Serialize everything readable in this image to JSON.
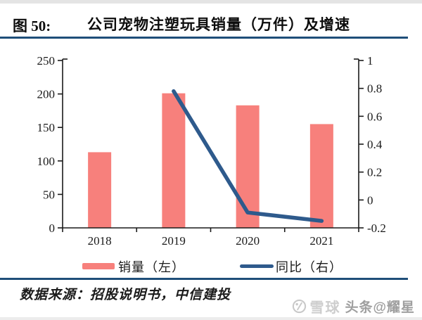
{
  "figure": {
    "label": "图 50:",
    "title": "公司宠物注塑玩具销量（万件）及增速"
  },
  "legend": [
    {
      "label": "销量（左）",
      "type": "bar"
    },
    {
      "label": "同比（右）",
      "type": "line"
    }
  ],
  "footer": {
    "source": "数据来源：招股说明书，中信建投"
  },
  "watermark": {
    "logo": "雪球",
    "badge": "头条@耀星"
  },
  "colors": {
    "bar": "#F7807C",
    "line": "#2E5A8C",
    "rule": "#1F4E79",
    "axis": "#1A1A1A"
  },
  "chart_data": {
    "type": "bar",
    "subtype": "combo-bar-line",
    "title": "公司宠物注塑玩具销量（万件）及增速",
    "categories": [
      "2018",
      "2019",
      "2020",
      "2021"
    ],
    "series": [
      {
        "name": "销量（左）",
        "type": "bar",
        "axis": "left",
        "values": [
          113,
          201,
          183,
          155
        ]
      },
      {
        "name": "同比（右）",
        "type": "line",
        "axis": "right",
        "values": [
          null,
          0.78,
          -0.09,
          -0.15
        ]
      }
    ],
    "left_axis": {
      "range": [
        0,
        250
      ],
      "ticks": [
        0,
        50,
        100,
        150,
        200,
        250
      ]
    },
    "right_axis": {
      "range": [
        -0.2,
        1
      ],
      "ticks": [
        -0.2,
        0,
        0.2,
        0.4,
        0.6,
        0.8,
        1
      ]
    },
    "grid": false,
    "legend_position": "bottom"
  }
}
